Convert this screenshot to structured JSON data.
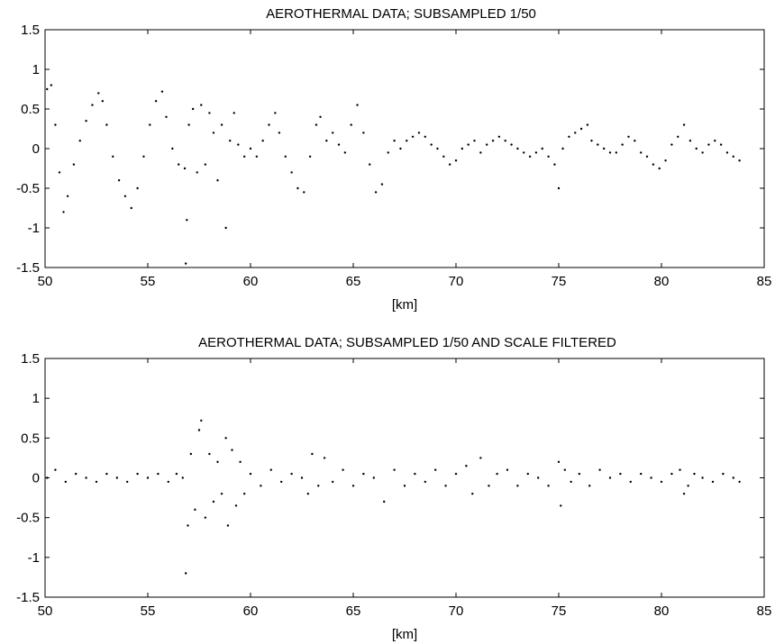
{
  "chart_data": [
    {
      "type": "scatter",
      "title": "AEROTHERMAL DATA;  SUBSAMPLED 1/50",
      "xlabel": "[km]",
      "ylabel": "",
      "xlim": [
        50,
        85
      ],
      "ylim": [
        -1.5,
        1.5
      ],
      "xticks": [
        "50",
        "55",
        "60",
        "65",
        "70",
        "75",
        "80",
        "85"
      ],
      "yticks": [
        "1.5",
        "1",
        "0.5",
        "0",
        "-0.5",
        "-1",
        "-1.5"
      ],
      "grid": false,
      "marker_color": "#000000",
      "series": [
        {
          "name": "",
          "x": [
            50.1,
            50.3,
            50.5,
            50.7,
            50.9,
            51.1,
            51.4,
            51.7,
            52.0,
            52.3,
            52.6,
            52.8,
            53.0,
            53.3,
            53.6,
            53.9,
            54.2,
            54.5,
            54.8,
            55.1,
            55.4,
            55.7,
            55.9,
            56.2,
            56.5,
            56.8,
            56.85,
            56.9,
            57.0,
            57.2,
            57.4,
            57.6,
            57.8,
            58.0,
            58.2,
            58.4,
            58.6,
            58.8,
            59.0,
            59.2,
            59.4,
            59.7,
            60.0,
            60.3,
            60.6,
            60.9,
            61.2,
            61.4,
            61.7,
            62.0,
            62.3,
            62.6,
            62.9,
            63.2,
            63.4,
            63.7,
            64.0,
            64.3,
            64.6,
            64.9,
            65.2,
            65.5,
            65.8,
            66.1,
            66.4,
            66.7,
            67.0,
            67.3,
            67.6,
            67.9,
            68.2,
            68.5,
            68.8,
            69.1,
            69.4,
            69.7,
            70.0,
            70.3,
            70.6,
            70.9,
            71.2,
            71.5,
            71.8,
            72.1,
            72.4,
            72.7,
            73.0,
            73.3,
            73.6,
            73.9,
            74.2,
            74.5,
            74.8,
            75.0,
            75.2,
            75.5,
            75.8,
            76.1,
            76.4,
            76.6,
            76.9,
            77.2,
            77.5,
            77.8,
            78.1,
            78.4,
            78.7,
            79.0,
            79.3,
            79.6,
            79.9,
            80.2,
            80.5,
            80.8,
            81.1,
            81.4,
            81.7,
            82.0,
            82.3,
            82.6,
            82.9,
            83.2,
            83.5,
            83.8
          ],
          "y": [
            0.75,
            0.8,
            0.3,
            -0.3,
            -0.8,
            -0.6,
            -0.2,
            0.1,
            0.35,
            0.55,
            0.7,
            0.6,
            0.3,
            -0.1,
            -0.4,
            -0.6,
            -0.75,
            -0.5,
            -0.1,
            0.3,
            0.6,
            0.72,
            0.4,
            0.0,
            -0.2,
            -0.25,
            -1.45,
            -0.9,
            0.3,
            0.5,
            -0.3,
            0.55,
            -0.2,
            0.45,
            0.2,
            -0.4,
            0.3,
            -1.0,
            0.1,
            0.45,
            0.05,
            -0.1,
            0.0,
            -0.1,
            0.1,
            0.3,
            0.45,
            0.2,
            -0.1,
            -0.3,
            -0.5,
            -0.55,
            -0.1,
            0.3,
            0.4,
            0.1,
            0.2,
            0.05,
            -0.05,
            0.3,
            0.55,
            0.2,
            -0.2,
            -0.55,
            -0.45,
            -0.05,
            0.1,
            0.0,
            0.1,
            0.15,
            0.2,
            0.15,
            0.05,
            0.0,
            -0.1,
            -0.2,
            -0.15,
            0.0,
            0.05,
            0.1,
            -0.05,
            0.05,
            0.1,
            0.15,
            0.1,
            0.05,
            0.0,
            -0.05,
            -0.1,
            -0.05,
            0.0,
            -0.1,
            -0.2,
            -0.5,
            0.0,
            0.15,
            0.2,
            0.25,
            0.3,
            0.1,
            0.05,
            0.0,
            -0.05,
            -0.05,
            0.05,
            0.15,
            0.1,
            -0.05,
            -0.1,
            -0.2,
            -0.25,
            -0.15,
            0.05,
            0.15,
            0.3,
            0.1,
            0.0,
            -0.05,
            0.05,
            0.1,
            0.05,
            -0.05,
            -0.1,
            -0.15
          ]
        }
      ]
    },
    {
      "type": "scatter",
      "title": "AEROTHERMAL DATA;  SUBSAMPLED 1/50 AND SCALE FILTERED",
      "xlabel": "[km]",
      "ylabel": "",
      "xlim": [
        50,
        85
      ],
      "ylim": [
        -1.5,
        1.5
      ],
      "xticks": [
        "50",
        "55",
        "60",
        "65",
        "70",
        "75",
        "80",
        "85"
      ],
      "yticks": [
        "1.5",
        "1",
        "0.5",
        "0",
        "-0.5",
        "-1",
        "-1.5"
      ],
      "grid": false,
      "marker_color": "#000000",
      "series": [
        {
          "name": "",
          "x": [
            50.1,
            50.5,
            51.0,
            51.5,
            52.0,
            52.5,
            53.0,
            53.5,
            54.0,
            54.5,
            55.0,
            55.5,
            56.0,
            56.4,
            56.7,
            56.85,
            56.95,
            57.1,
            57.3,
            57.5,
            57.6,
            57.8,
            58.0,
            58.2,
            58.4,
            58.6,
            58.8,
            58.9,
            59.1,
            59.3,
            59.5,
            59.7,
            60.0,
            60.5,
            61.0,
            61.5,
            62.0,
            62.5,
            62.8,
            63.0,
            63.3,
            63.6,
            64.0,
            64.5,
            65.0,
            65.5,
            66.0,
            66.5,
            67.0,
            67.5,
            68.0,
            68.5,
            69.0,
            69.5,
            70.0,
            70.5,
            70.8,
            71.2,
            71.6,
            72.0,
            72.5,
            73.0,
            73.5,
            74.0,
            74.5,
            75.0,
            75.1,
            75.3,
            75.6,
            76.0,
            76.5,
            77.0,
            77.5,
            78.0,
            78.5,
            79.0,
            79.5,
            80.0,
            80.5,
            80.9,
            81.1,
            81.3,
            81.6,
            82.0,
            82.5,
            83.0,
            83.5,
            83.8
          ],
          "y": [
            0.0,
            0.1,
            -0.05,
            0.05,
            0.0,
            -0.05,
            0.05,
            0.0,
            -0.05,
            0.05,
            0.0,
            0.05,
            -0.05,
            0.05,
            0.0,
            -1.2,
            -0.6,
            0.3,
            -0.4,
            0.6,
            0.72,
            -0.5,
            0.3,
            -0.3,
            0.2,
            -0.2,
            0.5,
            -0.6,
            0.35,
            -0.35,
            0.2,
            -0.2,
            0.05,
            -0.1,
            0.1,
            -0.05,
            0.05,
            0.0,
            -0.2,
            0.3,
            -0.1,
            0.25,
            -0.05,
            0.1,
            -0.1,
            0.05,
            0.0,
            -0.3,
            0.1,
            -0.1,
            0.05,
            -0.05,
            0.1,
            -0.1,
            0.05,
            0.15,
            -0.2,
            0.25,
            -0.1,
            0.05,
            0.1,
            -0.1,
            0.05,
            0.0,
            -0.1,
            0.2,
            -0.35,
            0.1,
            -0.05,
            0.05,
            -0.1,
            0.1,
            0.0,
            0.05,
            -0.05,
            0.05,
            0.0,
            -0.05,
            0.05,
            0.1,
            -0.2,
            -0.1,
            0.05,
            0.0,
            -0.05,
            0.05,
            0.0,
            -0.05
          ]
        }
      ]
    }
  ]
}
